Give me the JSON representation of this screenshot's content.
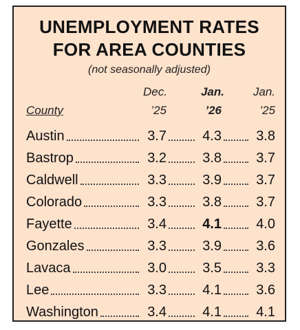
{
  "header": {
    "title": [
      "UNEMPLOYMENT RATES",
      "FOR AREA COUNTIES"
    ],
    "subtitle": "(not seasonally adjusted)"
  },
  "table": {
    "columns": [
      {
        "line1": "",
        "line2": "County"
      },
      {
        "line1": "Dec.",
        "line2": "’25"
      },
      {
        "line1": "Jan.",
        "line2": "’26"
      },
      {
        "line1": "Jan.",
        "line2": "’25"
      }
    ],
    "rows": [
      [
        "Austin",
        "3.7",
        "4.3",
        "3.8"
      ],
      [
        "Bastrop",
        "3.2",
        "3.8",
        "3.7"
      ],
      [
        "Caldwell",
        "3.3",
        "3.9",
        "3.7"
      ],
      [
        "Colorado",
        "3.3",
        "3.8",
        "3.7"
      ],
      [
        "Fayette",
        "3.4",
        "4.1",
        "4.0"
      ],
      [
        "Gonzales",
        "3.3",
        "3.9",
        "3.6"
      ],
      [
        "Lavaca",
        "3.0",
        "3.5",
        "3.3"
      ],
      [
        "Lee",
        "3.3",
        "4.1",
        "3.6"
      ],
      [
        "Washington",
        "3.4",
        "4.1",
        "4.1"
      ]
    ]
  }
}
